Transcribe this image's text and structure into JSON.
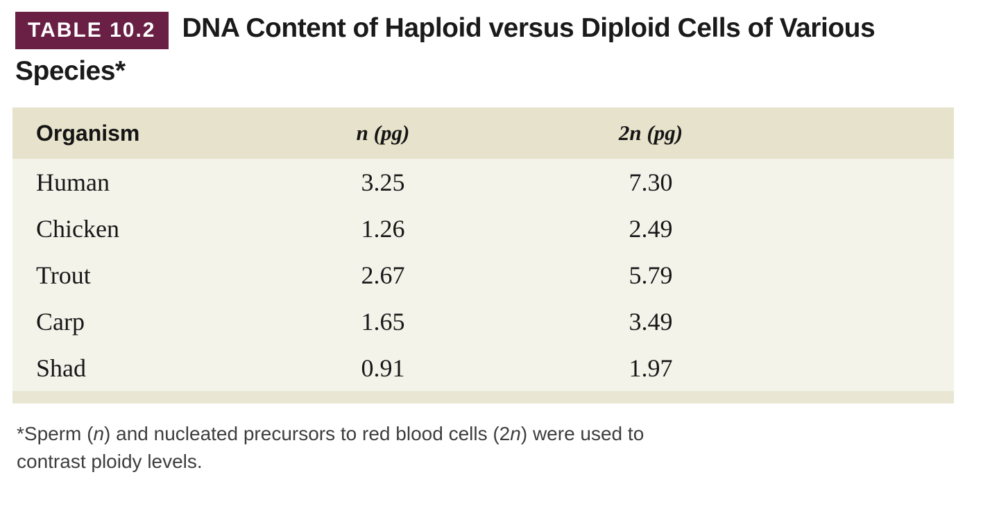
{
  "header": {
    "badge": "TABLE 10.2",
    "title": "DNA Content of Haploid versus Diploid Cells of Various Species*",
    "badge_color": "#6a1f45"
  },
  "table": {
    "columns": [
      "Organism",
      "n (pg)",
      "2n (pg)"
    ],
    "rows": [
      {
        "organism": "Human",
        "n": "3.25",
        "n2": "7.30"
      },
      {
        "organism": "Chicken",
        "n": "1.26",
        "n2": "2.49"
      },
      {
        "organism": "Trout",
        "n": "2.67",
        "n2": "5.79"
      },
      {
        "organism": "Carp",
        "n": "1.65",
        "n2": "3.49"
      },
      {
        "organism": "Shad",
        "n": "0.91",
        "n2": "1.97"
      }
    ],
    "colors": {
      "header_bg": "#e6e2cb",
      "body_bg": "#f4f3ea",
      "bottom_band_bg": "#e9e6d3"
    }
  },
  "footnote": {
    "parts": {
      "p0": "*Sperm (",
      "p1": "n",
      "p2": ") and nucleated precursors to red blood cells (2",
      "p3": "n",
      "p4": ") were used to",
      "line2": "contrast ploidy levels."
    }
  }
}
